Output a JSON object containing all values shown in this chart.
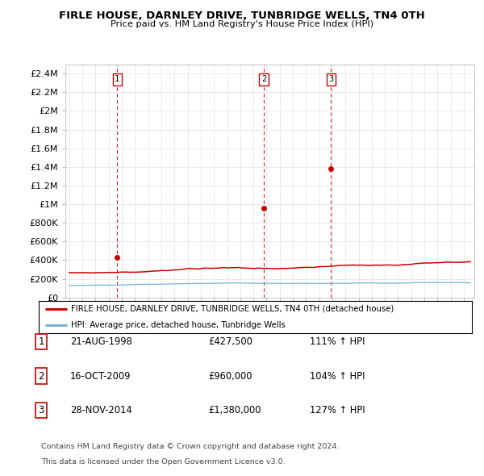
{
  "title": "FIRLE HOUSE, DARNLEY DRIVE, TUNBRIDGE WELLS, TN4 0TH",
  "subtitle": "Price paid vs. HM Land Registry's House Price Index (HPI)",
  "ylim": [
    0,
    2500000
  ],
  "yticks": [
    0,
    200000,
    400000,
    600000,
    800000,
    1000000,
    1200000,
    1400000,
    1600000,
    1800000,
    2000000,
    2200000,
    2400000
  ],
  "ytick_labels": [
    "£0",
    "£200K",
    "£400K",
    "£600K",
    "£800K",
    "£1M",
    "£1.2M",
    "£1.4M",
    "£1.6M",
    "£1.8M",
    "£2M",
    "£2.2M",
    "£2.4M"
  ],
  "sale_year_nums": [
    1998.64,
    2009.79,
    2014.91
  ],
  "sale_prices": [
    427500,
    960000,
    1380000
  ],
  "sale_labels": [
    "1",
    "2",
    "3"
  ],
  "vline_color": "#cc0000",
  "property_line_color": "#cc0000",
  "hpi_line_color": "#7bafd4",
  "legend_property": "FIRLE HOUSE, DARNLEY DRIVE, TUNBRIDGE WELLS, TN4 0TH (detached house)",
  "legend_hpi": "HPI: Average price, detached house, Tunbridge Wells",
  "table_rows": [
    {
      "num": "1",
      "date": "21-AUG-1998",
      "price": "£427,500",
      "hpi": "111% ↑ HPI"
    },
    {
      "num": "2",
      "date": "16-OCT-2009",
      "price": "£960,000",
      "hpi": "104% ↑ HPI"
    },
    {
      "num": "3",
      "date": "28-NOV-2014",
      "price": "£1,380,000",
      "hpi": "127% ↑ HPI"
    }
  ],
  "footnote1": "Contains HM Land Registry data © Crown copyright and database right 2024.",
  "footnote2": "This data is licensed under the Open Government Licence v3.0.",
  "background_color": "#ffffff",
  "grid_color": "#e0e0e0",
  "xlim_left": 1994.7,
  "xlim_right": 2025.8
}
